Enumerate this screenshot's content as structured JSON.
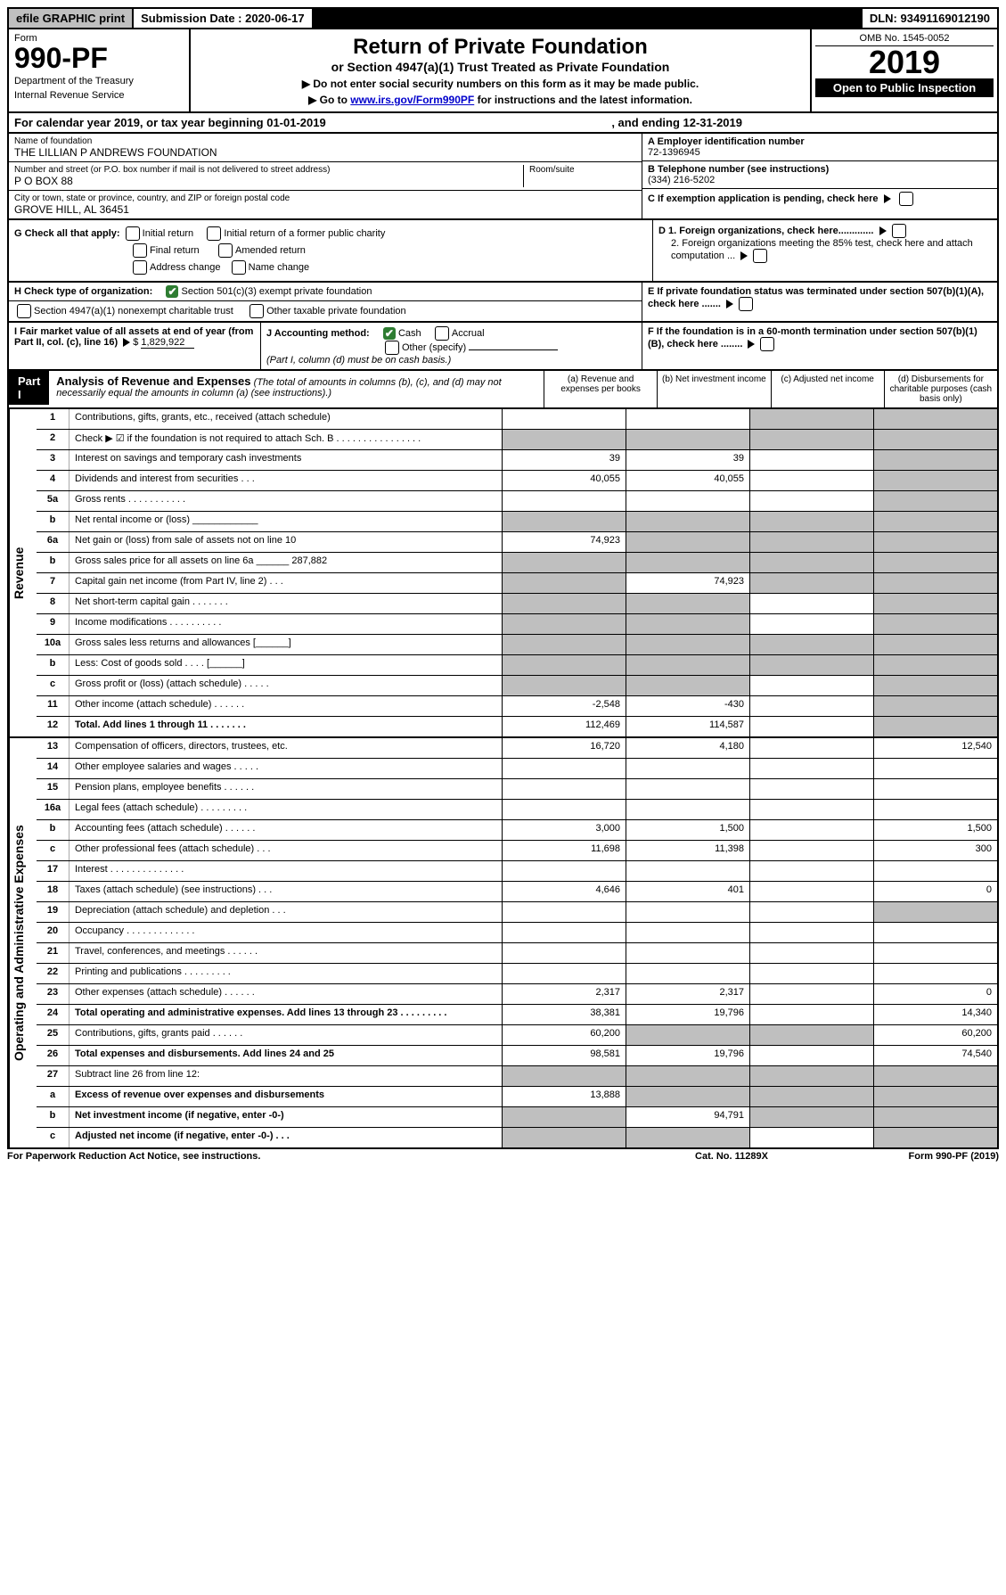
{
  "top": {
    "efile": "efile GRAPHIC print",
    "submission": "Submission Date : 2020-06-17",
    "dln": "DLN: 93491169012190"
  },
  "header": {
    "form_label": "Form",
    "form_number": "990-PF",
    "dept1": "Department of the Treasury",
    "dept2": "Internal Revenue Service",
    "title": "Return of Private Foundation",
    "subtitle": "or Section 4947(a)(1) Trust Treated as Private Foundation",
    "instr1": "▶ Do not enter social security numbers on this form as it may be made public.",
    "instr2_pre": "▶ Go to ",
    "instr2_link": "www.irs.gov/Form990PF",
    "instr2_post": " for instructions and the latest information.",
    "omb": "OMB No. 1545-0052",
    "year": "2019",
    "open": "Open to Public Inspection"
  },
  "calendar": {
    "text1": "For calendar year 2019, or tax year beginning 01-01-2019",
    "text2": ", and ending 12-31-2019"
  },
  "identity": {
    "name_label": "Name of foundation",
    "name_value": "THE LILLIAN P ANDREWS FOUNDATION",
    "addr_label": "Number and street (or P.O. box number if mail is not delivered to street address)",
    "addr_value": "P O BOX 88",
    "room_label": "Room/suite",
    "city_label": "City or town, state or province, country, and ZIP or foreign postal code",
    "city_value": "GROVE HILL, AL  36451",
    "a_label": "A Employer identification number",
    "a_value": "72-1396945",
    "b_label": "B Telephone number (see instructions)",
    "b_value": "(334) 216-5202",
    "c_label": "C If exemption application is pending, check here"
  },
  "checks": {
    "g_label": "G Check all that apply:",
    "g_opts": [
      "Initial return",
      "Initial return of a former public charity",
      "Final return",
      "Amended return",
      "Address change",
      "Name change"
    ],
    "h_label": "H Check type of organization:",
    "h1": "Section 501(c)(3) exempt private foundation",
    "h2": "Section 4947(a)(1) nonexempt charitable trust",
    "h3": "Other taxable private foundation",
    "i_label": "I Fair market value of all assets at end of year (from Part II, col. (c), line 16)",
    "i_value": "1,829,922",
    "j_label": "J Accounting method:",
    "j_cash": "Cash",
    "j_accrual": "Accrual",
    "j_other": "Other (specify)",
    "j_note": "(Part I, column (d) must be on cash basis.)",
    "d1": "D 1. Foreign organizations, check here.............",
    "d2": "2. Foreign organizations meeting the 85% test, check here and attach computation ...",
    "e_label": "E  If private foundation status was terminated under section 507(b)(1)(A), check here .......",
    "f_label": "F  If the foundation is in a 60-month termination under section 507(b)(1)(B), check here ........"
  },
  "part1": {
    "label": "Part I",
    "title": "Analysis of Revenue and Expenses",
    "note": "(The total of amounts in columns (b), (c), and (d) may not necessarily equal the amounts in column (a) (see instructions).)",
    "col_a": "(a) Revenue and expenses per books",
    "col_b": "(b) Net investment income",
    "col_c": "(c) Adjusted net income",
    "col_d": "(d) Disbursements for charitable purposes (cash basis only)"
  },
  "sections": {
    "revenue": "Revenue",
    "expenses": "Operating and Administrative Expenses"
  },
  "rows": [
    {
      "num": "1",
      "desc": "Contributions, gifts, grants, etc., received (attach schedule)",
      "a": "",
      "b": "",
      "c": "grey",
      "d": "grey"
    },
    {
      "num": "2",
      "desc": "Check ▶ ☑ if the foundation is not required to attach Sch. B  .  .  .  .  .  .  .  .  .  .  .  .  .  .  .  .",
      "a": "grey",
      "b": "grey",
      "c": "grey",
      "d": "grey"
    },
    {
      "num": "3",
      "desc": "Interest on savings and temporary cash investments",
      "a": "39",
      "b": "39",
      "c": "",
      "d": "grey"
    },
    {
      "num": "4",
      "desc": "Dividends and interest from securities   .   .   .",
      "a": "40,055",
      "b": "40,055",
      "c": "",
      "d": "grey"
    },
    {
      "num": "5a",
      "desc": "Gross rents  .   .   .   .   .   .   .   .   .   .   .",
      "a": "",
      "b": "",
      "c": "",
      "d": "grey"
    },
    {
      "num": "b",
      "desc": "Net rental income or (loss)  ____________",
      "a": "grey",
      "b": "grey",
      "c": "grey",
      "d": "grey"
    },
    {
      "num": "6a",
      "desc": "Net gain or (loss) from sale of assets not on line 10",
      "a": "74,923",
      "b": "grey",
      "c": "grey",
      "d": "grey"
    },
    {
      "num": "b",
      "desc": "Gross sales price for all assets on line 6a ______ 287,882",
      "a": "grey",
      "b": "grey",
      "c": "grey",
      "d": "grey"
    },
    {
      "num": "7",
      "desc": "Capital gain net income (from Part IV, line 2)   .   .   .",
      "a": "grey",
      "b": "74,923",
      "c": "grey",
      "d": "grey"
    },
    {
      "num": "8",
      "desc": "Net short-term capital gain   .   .   .   .   .   .   .",
      "a": "grey",
      "b": "grey",
      "c": "",
      "d": "grey"
    },
    {
      "num": "9",
      "desc": "Income modifications  .   .   .   .   .   .   .   .   .   .",
      "a": "grey",
      "b": "grey",
      "c": "",
      "d": "grey"
    },
    {
      "num": "10a",
      "desc": "Gross sales less returns and allowances  [______]",
      "a": "grey",
      "b": "grey",
      "c": "grey",
      "d": "grey"
    },
    {
      "num": "b",
      "desc": "Less: Cost of goods sold     .   .   .   .   [______]",
      "a": "grey",
      "b": "grey",
      "c": "grey",
      "d": "grey"
    },
    {
      "num": "c",
      "desc": "Gross profit or (loss) (attach schedule)   .   .   .   .   .",
      "a": "grey",
      "b": "grey",
      "c": "",
      "d": "grey"
    },
    {
      "num": "11",
      "desc": "Other income (attach schedule)    .   .   .   .   .   .",
      "a": "-2,548",
      "b": "-430",
      "c": "",
      "d": "grey"
    },
    {
      "num": "12",
      "desc": "Total. Add lines 1 through 11   .   .   .   .   .   .   .",
      "a": "112,469",
      "b": "114,587",
      "c": "",
      "d": "grey",
      "bold": true
    }
  ],
  "exp_rows": [
    {
      "num": "13",
      "desc": "Compensation of officers, directors, trustees, etc.",
      "a": "16,720",
      "b": "4,180",
      "c": "",
      "d": "12,540"
    },
    {
      "num": "14",
      "desc": "Other employee salaries and wages   .   .   .   .   .",
      "a": "",
      "b": "",
      "c": "",
      "d": ""
    },
    {
      "num": "15",
      "desc": "Pension plans, employee benefits  .   .   .   .   .   .",
      "a": "",
      "b": "",
      "c": "",
      "d": ""
    },
    {
      "num": "16a",
      "desc": "Legal fees (attach schedule) .   .   .   .   .   .   .   .   .",
      "a": "",
      "b": "",
      "c": "",
      "d": ""
    },
    {
      "num": "b",
      "desc": "Accounting fees (attach schedule)  .   .   .   .   .   .",
      "a": "3,000",
      "b": "1,500",
      "c": "",
      "d": "1,500"
    },
    {
      "num": "c",
      "desc": "Other professional fees (attach schedule)    .   .   .",
      "a": "11,698",
      "b": "11,398",
      "c": "",
      "d": "300"
    },
    {
      "num": "17",
      "desc": "Interest  .   .   .   .   .   .   .   .   .   .   .   .   .   .",
      "a": "",
      "b": "",
      "c": "",
      "d": ""
    },
    {
      "num": "18",
      "desc": "Taxes (attach schedule) (see instructions)    .   .   .",
      "a": "4,646",
      "b": "401",
      "c": "",
      "d": "0"
    },
    {
      "num": "19",
      "desc": "Depreciation (attach schedule) and depletion   .   .   .",
      "a": "",
      "b": "",
      "c": "",
      "d": "grey"
    },
    {
      "num": "20",
      "desc": "Occupancy .   .   .   .   .   .   .   .   .   .   .   .   .",
      "a": "",
      "b": "",
      "c": "",
      "d": ""
    },
    {
      "num": "21",
      "desc": "Travel, conferences, and meetings  .   .   .   .   .   .",
      "a": "",
      "b": "",
      "c": "",
      "d": ""
    },
    {
      "num": "22",
      "desc": "Printing and publications .   .   .   .   .   .   .   .   .",
      "a": "",
      "b": "",
      "c": "",
      "d": ""
    },
    {
      "num": "23",
      "desc": "Other expenses (attach schedule)  .   .   .   .   .   .",
      "a": "2,317",
      "b": "2,317",
      "c": "",
      "d": "0"
    },
    {
      "num": "24",
      "desc": "Total operating and administrative expenses. Add lines 13 through 23  .   .   .   .   .   .   .   .   .",
      "a": "38,381",
      "b": "19,796",
      "c": "",
      "d": "14,340",
      "bold": true
    },
    {
      "num": "25",
      "desc": "Contributions, gifts, grants paid    .   .   .   .   .   .",
      "a": "60,200",
      "b": "grey",
      "c": "grey",
      "d": "60,200"
    },
    {
      "num": "26",
      "desc": "Total expenses and disbursements. Add lines 24 and 25",
      "a": "98,581",
      "b": "19,796",
      "c": "",
      "d": "74,540",
      "bold": true
    },
    {
      "num": "27",
      "desc": "Subtract line 26 from line 12:",
      "a": "grey",
      "b": "grey",
      "c": "grey",
      "d": "grey"
    },
    {
      "num": "a",
      "desc": "Excess of revenue over expenses and disbursements",
      "a": "13,888",
      "b": "grey",
      "c": "grey",
      "d": "grey",
      "bold": true
    },
    {
      "num": "b",
      "desc": "Net investment income (if negative, enter -0-)",
      "a": "grey",
      "b": "94,791",
      "c": "grey",
      "d": "grey",
      "bold": true
    },
    {
      "num": "c",
      "desc": "Adjusted net income (if negative, enter -0-)  .   .   .",
      "a": "grey",
      "b": "grey",
      "c": "",
      "d": "grey",
      "bold": true
    }
  ],
  "footer": {
    "left": "For Paperwork Reduction Act Notice, see instructions.",
    "center": "Cat. No. 11289X",
    "right": "Form 990-PF (2019)"
  }
}
